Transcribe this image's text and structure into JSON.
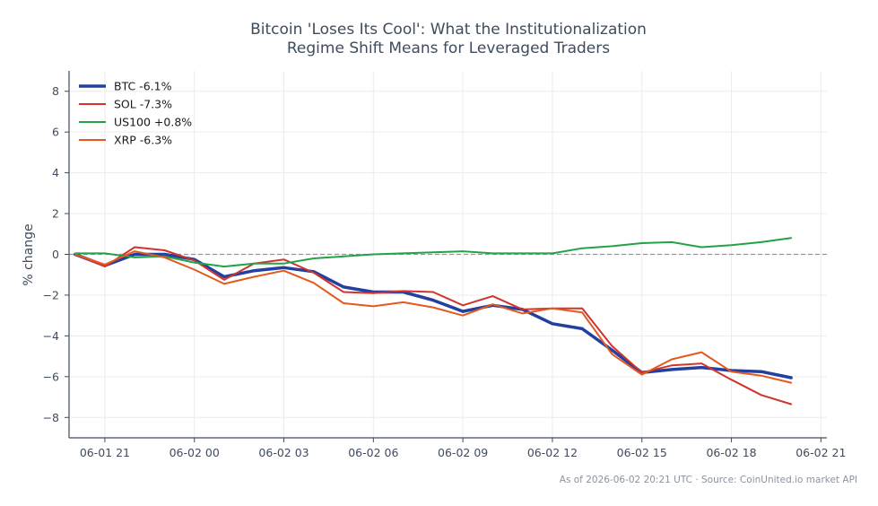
{
  "chart_data": {
    "type": "line",
    "title_lines": [
      "Bitcoin 'Loses Its Cool': What the Institutionalization",
      "Regime Shift Means for Leveraged Traders"
    ],
    "xlabel": "",
    "ylabel": "% change",
    "ylim": [
      -9,
      9
    ],
    "xlim": [
      -1.2,
      24.2
    ],
    "yticks": [
      8,
      6,
      4,
      2,
      0,
      -2,
      -4,
      -6,
      -8
    ],
    "xticks": [
      {
        "x": 0,
        "label": "06-01 21"
      },
      {
        "x": 3,
        "label": "06-02 00"
      },
      {
        "x": 6,
        "label": "06-02 03"
      },
      {
        "x": 9,
        "label": "06-02 06"
      },
      {
        "x": 12,
        "label": "06-02 09"
      },
      {
        "x": 15,
        "label": "06-02 12"
      },
      {
        "x": 18,
        "label": "06-02 15"
      },
      {
        "x": 21,
        "label": "06-02 18"
      },
      {
        "x": 24,
        "label": "06-02 21"
      }
    ],
    "x_unit": "hours since 06-01 21:00",
    "x": [
      -1,
      0,
      1,
      2,
      3,
      4,
      5,
      6,
      7,
      8,
      9,
      10,
      11,
      12,
      13,
      14,
      15,
      16,
      17,
      18,
      19,
      20,
      21,
      22,
      23
    ],
    "grid": true,
    "legend_position": "top-left",
    "reference_line": 0,
    "series": [
      {
        "name": "BTC -6.1%",
        "color": "#2340a0",
        "width": 3.5,
        "values": [
          0.0,
          -0.55,
          0.0,
          0.0,
          -0.25,
          -1.1,
          -0.8,
          -0.65,
          -0.85,
          -1.6,
          -1.85,
          -1.85,
          -2.25,
          -2.8,
          -2.5,
          -2.7,
          -3.4,
          -3.65,
          -4.7,
          -5.8,
          -5.65,
          -5.55,
          -5.7,
          -5.75,
          -6.05
        ]
      },
      {
        "name": "SOL -7.3%",
        "color": "#d0342c",
        "width": 2,
        "values": [
          0.0,
          -0.6,
          0.35,
          0.2,
          -0.3,
          -1.25,
          -0.45,
          -0.25,
          -0.9,
          -1.85,
          -1.9,
          -1.8,
          -1.85,
          -2.5,
          -2.05,
          -2.7,
          -2.65,
          -2.65,
          -4.5,
          -5.8,
          -5.45,
          -5.35,
          -6.15,
          -6.9,
          -7.35
        ]
      },
      {
        "name": "US100 +0.8%",
        "color": "#22a346",
        "width": 2,
        "values": [
          0.05,
          0.05,
          -0.15,
          -0.1,
          -0.4,
          -0.6,
          -0.45,
          -0.45,
          -0.2,
          -0.1,
          0.0,
          0.05,
          0.1,
          0.15,
          0.05,
          0.05,
          0.05,
          0.3,
          0.4,
          0.55,
          0.6,
          0.35,
          0.45,
          0.6,
          0.8
        ]
      },
      {
        "name": "XRP -6.3%",
        "color": "#e3591e",
        "width": 2,
        "values": [
          0.0,
          -0.5,
          0.15,
          -0.15,
          -0.75,
          -1.45,
          -1.1,
          -0.8,
          -1.4,
          -2.4,
          -2.55,
          -2.35,
          -2.6,
          -3.0,
          -2.45,
          -2.9,
          -2.65,
          -2.85,
          -4.9,
          -5.9,
          -5.15,
          -4.8,
          -5.75,
          -5.95,
          -6.3
        ]
      }
    ]
  },
  "footer": {
    "text": "As of 2026-06-02 20:21 UTC · Source: CoinUnited.io market API"
  },
  "colors": {
    "axis": "#3e4c5e",
    "grid": "#ececec",
    "zero_line": "#8a9aa8",
    "text": "#3e4c5e"
  }
}
